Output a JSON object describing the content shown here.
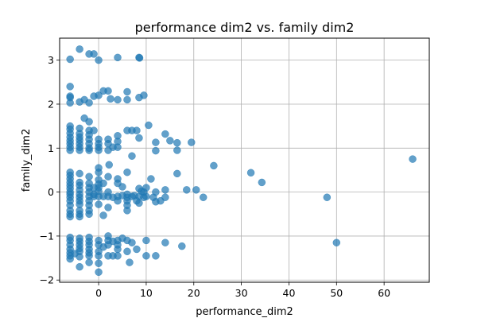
{
  "chart_data": {
    "type": "scatter",
    "title": "performance dim2 vs. family dim2",
    "xlabel": "performance_dim2",
    "ylabel": "family_dim2",
    "xlim": [
      -8.2,
      69.5
    ],
    "ylim": [
      -2.05,
      3.5
    ],
    "xticks": [
      0,
      10,
      20,
      30,
      40,
      50,
      60
    ],
    "yticks": [
      -2,
      -1,
      0,
      1,
      2,
      3
    ],
    "ytick_labels": [
      "−2",
      "−1",
      "0",
      "1",
      "2",
      "3"
    ],
    "grid": true,
    "marker_color": "#1f77b4",
    "points": [
      [
        -6,
        3.02
      ],
      [
        -4,
        3.25
      ],
      [
        -2,
        3.14
      ],
      [
        -1,
        3.14
      ],
      [
        0,
        3.0
      ],
      [
        4,
        3.06
      ],
      [
        8.5,
        3.06
      ],
      [
        8.6,
        3.05
      ],
      [
        -6,
        2.4
      ],
      [
        -6,
        2.18
      ],
      [
        -6,
        2.15
      ],
      [
        -6,
        2.03
      ],
      [
        -4,
        2.05
      ],
      [
        -3,
        2.1
      ],
      [
        -2,
        2.03
      ],
      [
        -1,
        2.18
      ],
      [
        0,
        2.2
      ],
      [
        1,
        2.3
      ],
      [
        2,
        2.3
      ],
      [
        2.5,
        2.12
      ],
      [
        4,
        2.1
      ],
      [
        6,
        2.28
      ],
      [
        6,
        2.1
      ],
      [
        8.5,
        2.15
      ],
      [
        9.5,
        2.2
      ],
      [
        -6,
        1.5
      ],
      [
        -6,
        1.43
      ],
      [
        -6,
        1.34
      ],
      [
        -6,
        1.25
      ],
      [
        -6,
        1.17
      ],
      [
        -6,
        1.1
      ],
      [
        -6,
        1.02
      ],
      [
        -6,
        0.95
      ],
      [
        -4,
        1.45
      ],
      [
        -4,
        1.33
      ],
      [
        -4,
        1.25
      ],
      [
        -4,
        1.18
      ],
      [
        -4,
        1.1
      ],
      [
        -4,
        1.02
      ],
      [
        -4,
        0.95
      ],
      [
        -3,
        1.68
      ],
      [
        -2,
        1.6
      ],
      [
        -2,
        1.4
      ],
      [
        -2,
        1.3
      ],
      [
        -2,
        1.2
      ],
      [
        -2,
        1.1
      ],
      [
        -2,
        1.0
      ],
      [
        -2,
        0.95
      ],
      [
        -1,
        1.4
      ],
      [
        0,
        1.2
      ],
      [
        0,
        1.1
      ],
      [
        0,
        1.02
      ],
      [
        0,
        0.95
      ],
      [
        2,
        1.2
      ],
      [
        2,
        1.1
      ],
      [
        2,
        0.95
      ],
      [
        3,
        1.02
      ],
      [
        4,
        1.28
      ],
      [
        4,
        1.15
      ],
      [
        4,
        1.02
      ],
      [
        6,
        1.4
      ],
      [
        7,
        1.4
      ],
      [
        8,
        1.4
      ],
      [
        8.5,
        1.23
      ],
      [
        10.5,
        1.52
      ],
      [
        12,
        1.13
      ],
      [
        12,
        0.94
      ],
      [
        14,
        1.32
      ],
      [
        15,
        1.17
      ],
      [
        16.5,
        1.12
      ],
      [
        16.5,
        0.95
      ],
      [
        19.5,
        1.13
      ],
      [
        7,
        0.82
      ],
      [
        24.2,
        0.6
      ],
      [
        32,
        0.44
      ],
      [
        34.3,
        0.22
      ],
      [
        66,
        0.75
      ],
      [
        -6,
        0.45
      ],
      [
        -6,
        0.38
      ],
      [
        -6,
        0.3
      ],
      [
        -6,
        0.22
      ],
      [
        -6,
        0.15
      ],
      [
        -6,
        0.08
      ],
      [
        -6,
        0.0
      ],
      [
        -6,
        -0.05
      ],
      [
        -6,
        -0.12
      ],
      [
        -6,
        -0.2
      ],
      [
        -6,
        -0.3
      ],
      [
        -6,
        -0.42
      ],
      [
        -6,
        -0.5
      ],
      [
        -6,
        -0.56
      ],
      [
        -4,
        0.42
      ],
      [
        -4,
        0.22
      ],
      [
        -4,
        0.15
      ],
      [
        -4,
        0.05
      ],
      [
        -4,
        -0.05
      ],
      [
        -4,
        -0.12
      ],
      [
        -4,
        -0.2
      ],
      [
        -4,
        -0.28
      ],
      [
        -4,
        -0.42
      ],
      [
        -4,
        -0.5
      ],
      [
        -4,
        -0.56
      ],
      [
        -2,
        0.35
      ],
      [
        -2,
        0.2
      ],
      [
        -2,
        0.1
      ],
      [
        -2,
        0.0
      ],
      [
        -2,
        -0.1
      ],
      [
        -2,
        -0.2
      ],
      [
        -2,
        -0.3
      ],
      [
        -2,
        -0.42
      ],
      [
        -2,
        -0.5
      ],
      [
        -1,
        0.1
      ],
      [
        -1,
        -0.05
      ],
      [
        -1,
        -0.1
      ],
      [
        0,
        0.55
      ],
      [
        0,
        0.45
      ],
      [
        0,
        0.28
      ],
      [
        0,
        0.18
      ],
      [
        0,
        0.1
      ],
      [
        0,
        0.02
      ],
      [
        0,
        -0.1
      ],
      [
        0,
        -0.28
      ],
      [
        1,
        0.2
      ],
      [
        1,
        -0.1
      ],
      [
        1,
        -0.53
      ],
      [
        2,
        0.35
      ],
      [
        2,
        0.0
      ],
      [
        2,
        -0.1
      ],
      [
        2,
        -0.35
      ],
      [
        2.2,
        0.62
      ],
      [
        3,
        -0.12
      ],
      [
        4,
        0.3
      ],
      [
        4,
        0.2
      ],
      [
        4,
        -0.1
      ],
      [
        4,
        -0.2
      ],
      [
        5,
        0.12
      ],
      [
        5,
        -0.08
      ],
      [
        6,
        0.45
      ],
      [
        6,
        -0.05
      ],
      [
        6,
        -0.12
      ],
      [
        6,
        -0.2
      ],
      [
        6,
        -0.3
      ],
      [
        6,
        -0.42
      ],
      [
        7,
        -0.1
      ],
      [
        7.5,
        -0.08
      ],
      [
        8,
        -0.2
      ],
      [
        8.5,
        -0.1
      ],
      [
        8.5,
        -0.25
      ],
      [
        8.5,
        0.08
      ],
      [
        9,
        0.02
      ],
      [
        9.5,
        0.0
      ],
      [
        9.5,
        -0.12
      ],
      [
        10,
        -0.1
      ],
      [
        10,
        0.1
      ],
      [
        11,
        0.3
      ],
      [
        11.5,
        -0.12
      ],
      [
        12,
        0.0
      ],
      [
        12,
        -0.22
      ],
      [
        13,
        -0.2
      ],
      [
        14,
        -0.12
      ],
      [
        14,
        0.05
      ],
      [
        16.5,
        0.42
      ],
      [
        18.5,
        0.05
      ],
      [
        20.5,
        0.05
      ],
      [
        22,
        -0.12
      ],
      [
        48,
        -0.12
      ],
      [
        -6,
        -1.03
      ],
      [
        -6,
        -1.1
      ],
      [
        -6,
        -1.2
      ],
      [
        -6,
        -1.3
      ],
      [
        -6,
        -1.38
      ],
      [
        -6,
        -1.45
      ],
      [
        -6,
        -1.52
      ],
      [
        -5,
        -1.4
      ],
      [
        -4,
        -1.05
      ],
      [
        -4,
        -1.12
      ],
      [
        -4,
        -1.2
      ],
      [
        -4,
        -1.28
      ],
      [
        -4,
        -1.35
      ],
      [
        -4,
        -1.47
      ],
      [
        -4,
        -1.7
      ],
      [
        -2,
        -1.03
      ],
      [
        -2,
        -1.12
      ],
      [
        -2,
        -1.2
      ],
      [
        -2,
        -1.3
      ],
      [
        -2,
        -1.38
      ],
      [
        -2,
        -1.45
      ],
      [
        -2,
        -1.6
      ],
      [
        0,
        -1.1
      ],
      [
        0,
        -1.2
      ],
      [
        0,
        -1.35
      ],
      [
        0,
        -1.45
      ],
      [
        0,
        -1.62
      ],
      [
        0,
        -1.82
      ],
      [
        1,
        -1.25
      ],
      [
        2,
        -1.0
      ],
      [
        2,
        -1.1
      ],
      [
        2,
        -1.2
      ],
      [
        2,
        -1.45
      ],
      [
        3,
        -1.12
      ],
      [
        3,
        -1.45
      ],
      [
        4,
        -1.1
      ],
      [
        4,
        -1.2
      ],
      [
        4,
        -1.3
      ],
      [
        4,
        -1.45
      ],
      [
        5,
        -1.05
      ],
      [
        6,
        -1.1
      ],
      [
        6,
        -1.35
      ],
      [
        6.5,
        -1.6
      ],
      [
        7,
        -1.15
      ],
      [
        8,
        -1.3
      ],
      [
        10,
        -1.1
      ],
      [
        10,
        -1.45
      ],
      [
        12,
        -1.45
      ],
      [
        14,
        -1.15
      ],
      [
        17.5,
        -1.23
      ],
      [
        50,
        -1.15
      ]
    ]
  }
}
